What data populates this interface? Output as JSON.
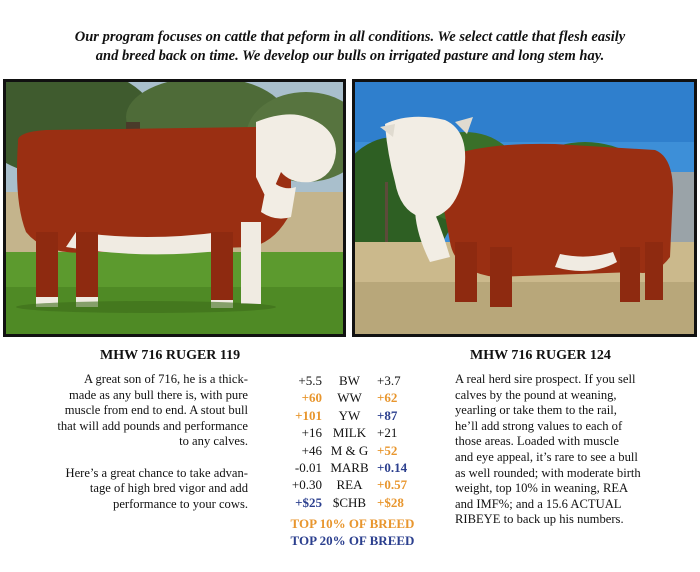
{
  "intro": {
    "line1": "Our program focuses on cattle that peform in all conditions.  We select cattle that flesh easily",
    "line2": "and breed back on time.  We develop our bulls on irrigated pasture and long stem hay."
  },
  "bulls": [
    {
      "name": "MHW 716 RUGER 119",
      "description": {
        "para1": [
          "A great son of 716, he is a thick-",
          "made as any bull there is, with pure",
          "muscle from end to end.  A stout bull",
          "that will add pounds and performance",
          "to any calves."
        ],
        "para2": [
          "Here’s a great chance to take advan-",
          "tage of high bred vigor and add",
          "performance to your cows."
        ]
      }
    },
    {
      "name": "MHW 716 RUGER 124",
      "description": {
        "para1": [
          "A real herd sire prospect.  If you sell",
          "calves by the pound at weaning,",
          "yearling or take them to the rail,",
          "he’ll add strong values to each of",
          "those areas.  Loaded with muscle",
          "and eye appeal, it’s rare to see a bull",
          "as well rounded; with moderate birth",
          "weight, top 10% in weaning, REA",
          "and IMF%; and a 15.6 ACTUAL",
          "RIBEYE to back up his numbers."
        ]
      }
    }
  ],
  "epd_rows": [
    {
      "left": "+5.5",
      "left_tier": "none",
      "trait": "BW",
      "right": "+3.7",
      "right_tier": "none"
    },
    {
      "left": "+60",
      "left_tier": "top10",
      "trait": "WW",
      "right": "+62",
      "right_tier": "top10"
    },
    {
      "left": "+101",
      "left_tier": "top10",
      "trait": "YW",
      "right": "+87",
      "right_tier": "top20"
    },
    {
      "left": "+16",
      "left_tier": "none",
      "trait": "MILK",
      "right": "+21",
      "right_tier": "none"
    },
    {
      "left": "+46",
      "left_tier": "none",
      "trait": "M & G",
      "right": "+52",
      "right_tier": "top10"
    },
    {
      "left": "-0.01",
      "left_tier": "none",
      "trait": "MARB",
      "right": "+0.14",
      "right_tier": "top20"
    },
    {
      "left": "+0.30",
      "left_tier": "none",
      "trait": "REA",
      "right": "+0.57",
      "right_tier": "top10"
    },
    {
      "left": "+$25",
      "left_tier": "top20",
      "trait": "$CHB",
      "right": "+$28",
      "right_tier": "top10"
    }
  ],
  "legend": {
    "top10": "TOP 10% OF BREED",
    "top20": "TOP 20% OF BREED"
  },
  "colors": {
    "top10": "#e8962e",
    "top20": "#2b3f8e"
  }
}
